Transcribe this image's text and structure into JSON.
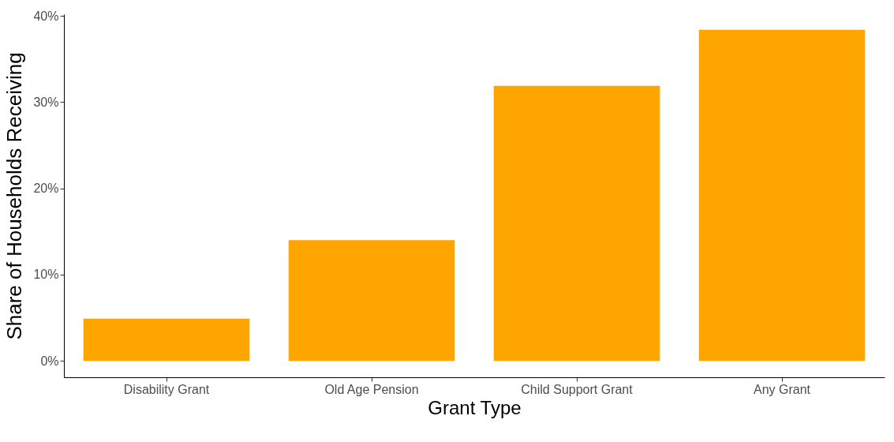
{
  "chart_data": {
    "type": "bar",
    "xlabel": "Grant Type",
    "ylabel": "Share of Households Receiving",
    "categories": [
      "Disability Grant",
      "Old Age Pension",
      "Child Support Grant",
      "Any Grant"
    ],
    "values": [
      4.9,
      14.0,
      31.9,
      38.4
    ],
    "color": "#ffa500",
    "ylim": [
      -1.9,
      40.2
    ],
    "yticks": [
      {
        "value": 0,
        "label": "0%"
      },
      {
        "value": 10,
        "label": "10%"
      },
      {
        "value": 20,
        "label": "20%"
      },
      {
        "value": 30,
        "label": "30%"
      },
      {
        "value": 40,
        "label": "40%"
      }
    ],
    "grid": false
  }
}
